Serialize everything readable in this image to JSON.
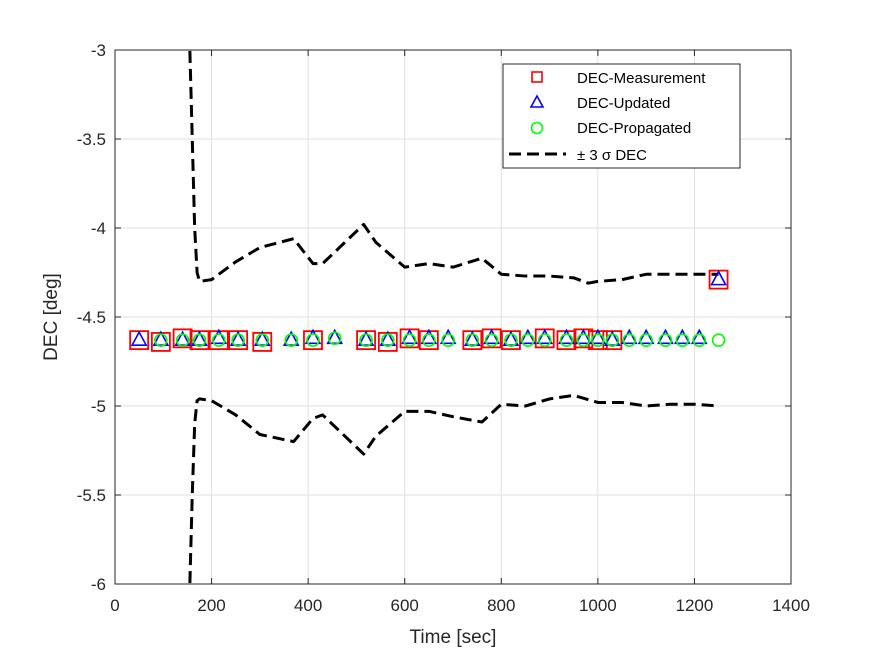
{
  "chart_data": {
    "type": "scatter",
    "title": "",
    "xlabel": "Time [sec]",
    "ylabel": "DEC [deg]",
    "xlim": [
      0,
      1400
    ],
    "ylim": [
      -6,
      -3
    ],
    "xticks": [
      0,
      200,
      400,
      600,
      800,
      1000,
      1200,
      1400
    ],
    "yticks": [
      -6,
      -5.5,
      -5,
      -4.5,
      -4,
      -3.5,
      -3
    ],
    "xtick_labels": [
      "0",
      "200",
      "400",
      "600",
      "800",
      "1000",
      "1200",
      "1400"
    ],
    "ytick_labels": [
      "-6",
      "-5.5",
      "-5",
      "-4.5",
      "-4",
      "-3.5",
      "-3"
    ],
    "grid": true,
    "legend_position": "top-right",
    "series": [
      {
        "name": "DEC-Measurement",
        "marker": "square",
        "color": "#ff0000",
        "x": [
          50,
          95,
          140,
          175,
          215,
          255,
          305,
          410,
          520,
          565,
          610,
          650,
          740,
          780,
          820,
          890,
          935,
          970,
          1000,
          1030,
          1250
        ],
        "y": [
          -4.63,
          -4.64,
          -4.62,
          -4.63,
          -4.63,
          -4.63,
          -4.64,
          -4.63,
          -4.63,
          -4.64,
          -4.62,
          -4.63,
          -4.63,
          -4.62,
          -4.63,
          -4.62,
          -4.63,
          -4.62,
          -4.63,
          -4.63,
          -4.29
        ]
      },
      {
        "name": "DEC-Updated",
        "marker": "triangle",
        "color": "#0000ff",
        "x": [
          50,
          95,
          140,
          175,
          215,
          255,
          305,
          365,
          410,
          455,
          520,
          565,
          610,
          650,
          690,
          740,
          780,
          820,
          855,
          890,
          935,
          970,
          1000,
          1030,
          1065,
          1100,
          1140,
          1175,
          1210,
          1250
        ],
        "y": [
          -4.63,
          -4.63,
          -4.63,
          -4.63,
          -4.62,
          -4.63,
          -4.63,
          -4.63,
          -4.62,
          -4.62,
          -4.63,
          -4.63,
          -4.62,
          -4.62,
          -4.62,
          -4.63,
          -4.62,
          -4.63,
          -4.62,
          -4.62,
          -4.62,
          -4.62,
          -4.62,
          -4.63,
          -4.62,
          -4.62,
          -4.62,
          -4.62,
          -4.62,
          -4.29
        ]
      },
      {
        "name": "DEC-Propagated",
        "marker": "circle",
        "color": "#00ff00",
        "x": [
          95,
          140,
          175,
          215,
          255,
          305,
          365,
          410,
          455,
          520,
          565,
          610,
          650,
          690,
          740,
          780,
          820,
          855,
          890,
          935,
          970,
          1000,
          1030,
          1065,
          1100,
          1140,
          1175,
          1210,
          1250
        ],
        "y": [
          -4.63,
          -4.63,
          -4.63,
          -4.63,
          -4.63,
          -4.63,
          -4.63,
          -4.63,
          -4.62,
          -4.63,
          -4.63,
          -4.63,
          -4.63,
          -4.63,
          -4.63,
          -4.63,
          -4.63,
          -4.63,
          -4.63,
          -4.63,
          -4.63,
          -4.63,
          -4.63,
          -4.63,
          -4.63,
          -4.63,
          -4.63,
          -4.63,
          -4.63
        ]
      }
    ],
    "bounds": {
      "name": "± 3 σ DEC",
      "line_style": "dashed",
      "color": "#000000",
      "upper": {
        "x": [
          150,
          155,
          160,
          165,
          170,
          175,
          200,
          250,
          300,
          370,
          410,
          430,
          515,
          540,
          600,
          650,
          700,
          760,
          800,
          850,
          900,
          950,
          980,
          1000,
          1050,
          1100,
          1150,
          1200,
          1250
        ],
        "y": [
          -2.5,
          -3.0,
          -3.5,
          -4.0,
          -4.25,
          -4.3,
          -4.29,
          -4.19,
          -4.11,
          -4.06,
          -4.2,
          -4.2,
          -3.98,
          -4.08,
          -4.22,
          -4.2,
          -4.22,
          -4.17,
          -4.26,
          -4.27,
          -4.27,
          -4.28,
          -4.31,
          -4.3,
          -4.29,
          -4.26,
          -4.26,
          -4.26,
          -4.26
        ]
      },
      "lower": {
        "x": [
          150,
          155,
          160,
          165,
          170,
          175,
          200,
          250,
          300,
          370,
          410,
          430,
          515,
          540,
          600,
          650,
          700,
          760,
          800,
          850,
          900,
          950,
          1000,
          1050,
          1100,
          1150,
          1200,
          1250
        ],
        "y": [
          -6.5,
          -6.0,
          -5.5,
          -5.1,
          -4.97,
          -4.96,
          -4.97,
          -5.05,
          -5.16,
          -5.2,
          -5.07,
          -5.05,
          -5.27,
          -5.17,
          -5.03,
          -5.03,
          -5.06,
          -5.09,
          -4.99,
          -5.0,
          -4.96,
          -4.94,
          -4.98,
          -4.98,
          -5.0,
          -4.99,
          -4.99,
          -5.0
        ]
      }
    },
    "legend_entries": [
      "DEC-Measurement",
      "DEC-Updated",
      "DEC-Propagated",
      "± 3 σ DEC"
    ]
  }
}
